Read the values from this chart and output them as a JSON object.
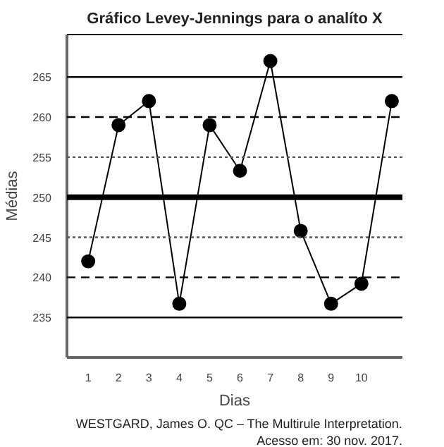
{
  "chart_data": {
    "type": "line",
    "title": "Gráfico Levey-Jennings para o analíto X",
    "xlabel": "Dias",
    "ylabel": "Médias",
    "x": [
      1,
      2,
      3,
      4,
      5,
      6,
      7,
      8,
      9,
      10,
      11
    ],
    "series": [
      {
        "color": "#000000",
        "values": [
          242,
          259,
          262,
          236.7,
          259,
          253.3,
          267,
          245.8,
          236.7,
          239.2,
          262
        ]
      }
    ],
    "xlim": [
      0.3,
      11.35
    ],
    "xticks": [
      1,
      2,
      3,
      4,
      5,
      6,
      7,
      8,
      9,
      10
    ],
    "ylim": [
      230,
      270.3
    ],
    "yticks": [
      235,
      240,
      245,
      250,
      255,
      260,
      265
    ],
    "marker": "circle",
    "line_style": "solid",
    "grid": false,
    "ref_lines": [
      {
        "axis": "y",
        "value": 265,
        "color": "#000000",
        "line_style": "solid"
      },
      {
        "axis": "y",
        "value": 260,
        "color": "#000000",
        "line_style": "dashed"
      },
      {
        "axis": "y",
        "value": 255,
        "color": "#555555",
        "line_style": "dotted"
      },
      {
        "axis": "y",
        "value": 250,
        "color": "#000000",
        "line_style": "solid"
      },
      {
        "axis": "y",
        "value": 245,
        "color": "#555555",
        "line_style": "dotted"
      },
      {
        "axis": "y",
        "value": 240,
        "color": "#000000",
        "line_style": "dashed"
      },
      {
        "axis": "y",
        "value": 235,
        "color": "#000000",
        "line_style": "solid"
      }
    ],
    "annotations": [
      "WESTGARD, James O. QC – The Multirule Interpretation.",
      "Acesso em: 30 nov. 2017."
    ]
  }
}
